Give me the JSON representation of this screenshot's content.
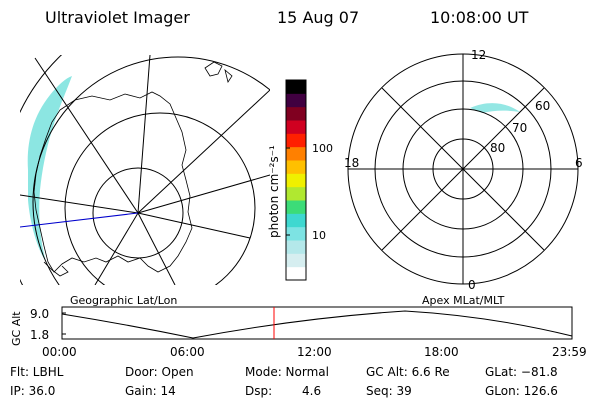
{
  "header": {
    "title": "Ultraviolet Imager",
    "date": "15 Aug 07",
    "time": "10:08:00 UT"
  },
  "colorbar": {
    "unit_label": "photon cm⁻²s⁻¹",
    "ticks": [
      "100",
      "10"
    ],
    "colors": [
      "#ffffff",
      "#d6eef0",
      "#b4e8ea",
      "#7de3e3",
      "#3ed8d0",
      "#3cdc78",
      "#b0e830",
      "#f0f000",
      "#ffc000",
      "#ff8000",
      "#ff2000",
      "#d00020",
      "#800020",
      "#400040",
      "#000000"
    ]
  },
  "geo_map": {
    "label": "Geographic Lat/Lon",
    "aurora_color": "#66ddd8"
  },
  "polar_plot": {
    "label": "Apex MLat/MLT",
    "mlt_labels": {
      "top": "12",
      "bottom": "0",
      "left": "18",
      "right": "6"
    },
    "lat_labels": [
      "60",
      "70",
      "80"
    ]
  },
  "altitude_plot": {
    "ylabel": "GC Alt",
    "yticks": [
      "9.0",
      "1.8"
    ],
    "xticks": [
      "00:00",
      "06:00",
      "12:00",
      "18:00",
      "23:59"
    ],
    "current_time_color": "#ff0000"
  },
  "info": {
    "flt": "Flt: LBHL",
    "ip": "IP: 36.0",
    "door": "Door: Open",
    "gain": "Gain: 14",
    "mode": "Mode: Normal",
    "dsp_label": "Dsp:",
    "dsp_value": "4.6",
    "gc_alt": "GC Alt: 6.6 Re",
    "seq": "Seq: 39",
    "glat": "GLat: −81.8",
    "glon": "GLon: 126.6"
  }
}
